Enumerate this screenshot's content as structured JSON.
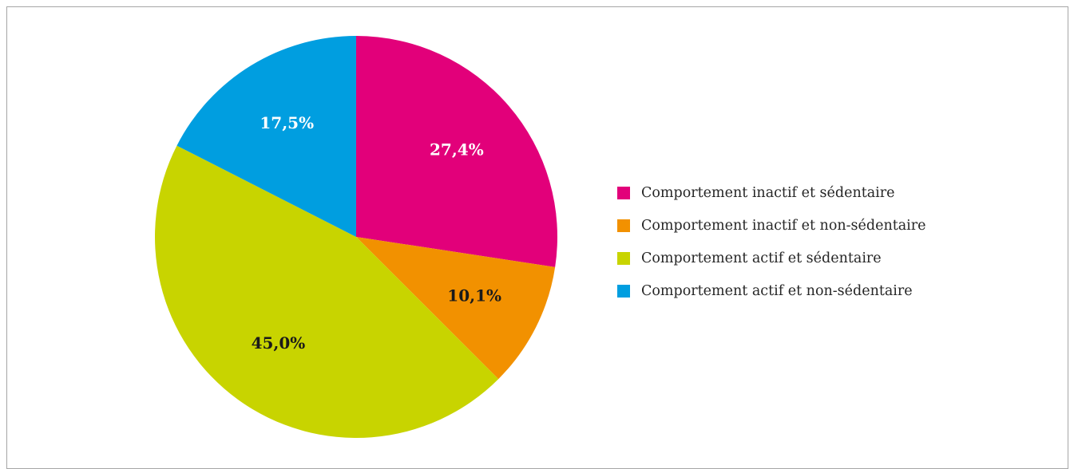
{
  "chart_data": {
    "type": "pie",
    "title": "",
    "legend_position": "right",
    "start_angle_deg": 0,
    "direction": "clockwise",
    "slices": [
      {
        "label": "Comportement inactif et sédentaire",
        "value": 27.4,
        "display": "27,4%",
        "color": "#e2007a",
        "label_color": "#ffffff"
      },
      {
        "label": "Comportement inactif et non-sédentaire",
        "value": 10.1,
        "display": "10,1%",
        "color": "#f29100",
        "label_color": "#1a1a1a"
      },
      {
        "label": "Comportement actif et sédentaire",
        "value": 45.0,
        "display": "45,0%",
        "color": "#c8d400",
        "label_color": "#1a1a1a"
      },
      {
        "label": "Comportement actif et non-sédentaire",
        "value": 17.5,
        "display": "17,5%",
        "color": "#009ee0",
        "label_color": "#ffffff"
      }
    ]
  },
  "legend": {
    "items": [
      {
        "label": "Comportement inactif et sédentaire",
        "color": "#e2007a"
      },
      {
        "label": "Comportement inactif et non-sédentaire",
        "color": "#f29100"
      },
      {
        "label": "Comportement actif et sédentaire",
        "color": "#c8d400"
      },
      {
        "label": "Comportement actif et non-sédentaire",
        "color": "#009ee0"
      }
    ]
  }
}
